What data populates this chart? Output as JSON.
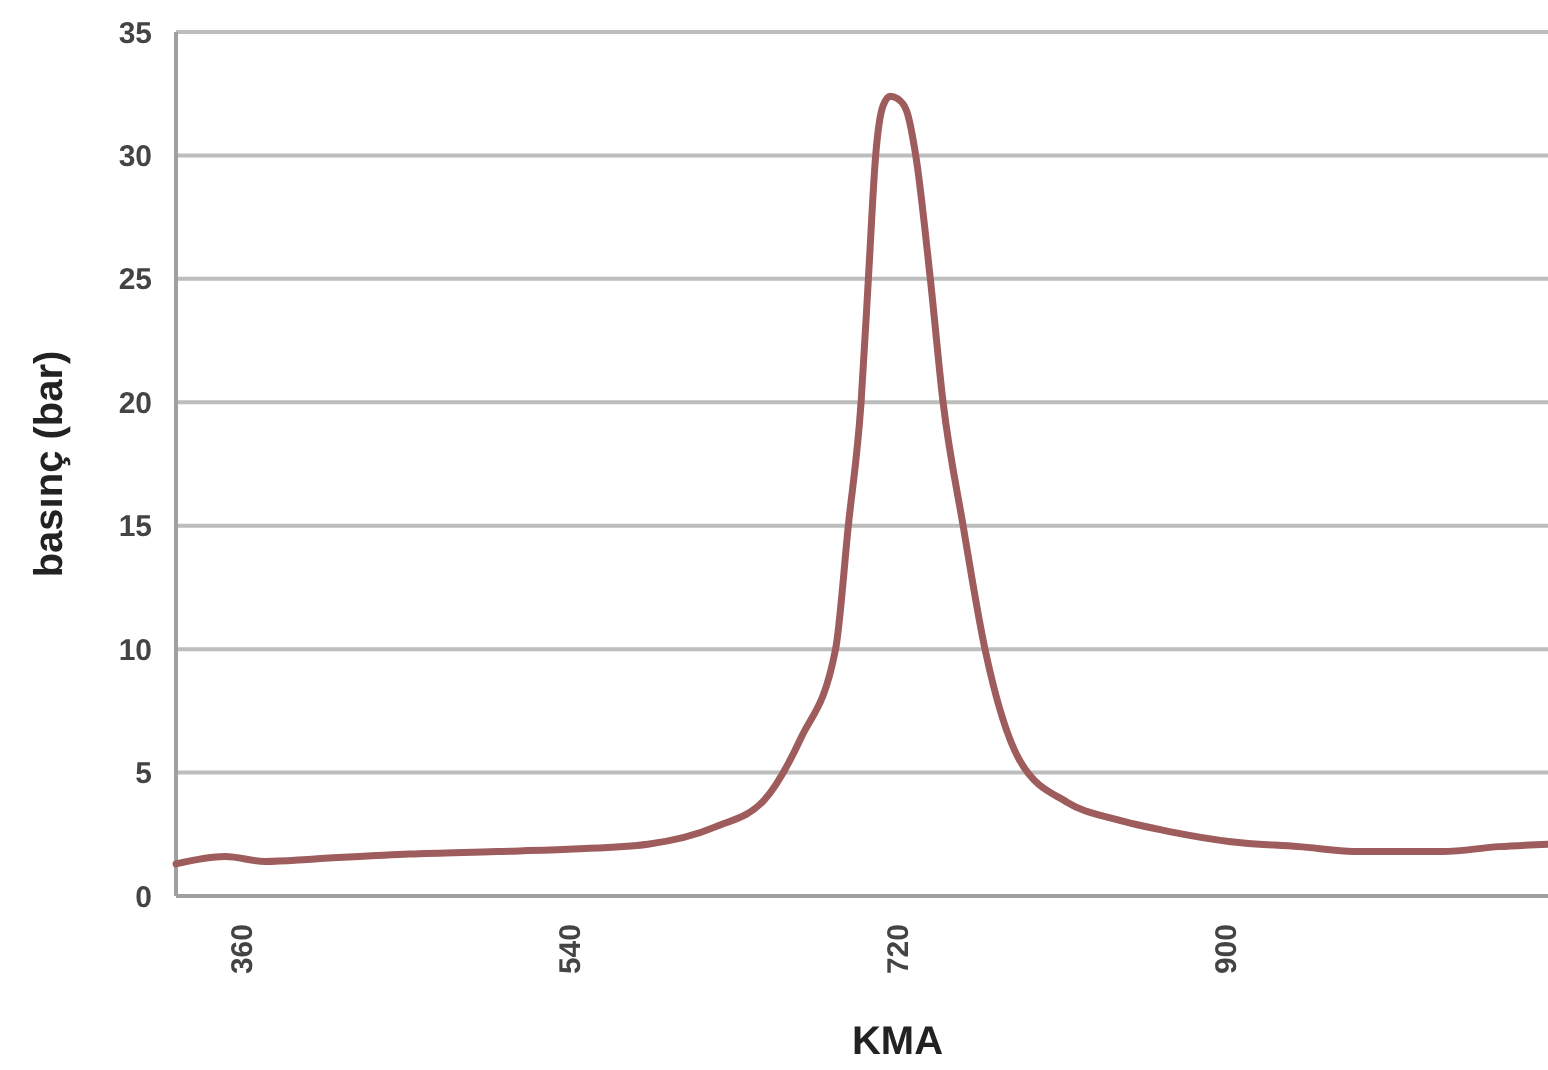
{
  "chart_data": {
    "type": "line",
    "xlabel": "KMA",
    "ylabel": "basınç (bar)",
    "xlim": [
      324,
      1077
    ],
    "ylim": [
      0,
      35
    ],
    "xticks": [
      360,
      540,
      720,
      900
    ],
    "yticks": [
      0,
      5,
      10,
      15,
      20,
      25,
      30,
      35
    ],
    "grid": "y",
    "series": [
      {
        "color": "#9e5c5c",
        "x": [
          324,
          351,
          373,
          400,
          452,
          500,
          542,
          583,
          620,
          647,
          667,
          686,
          693,
          700,
          704,
          708,
          712,
          716,
          720,
          725,
          730,
          738,
          745,
          756,
          768,
          787,
          813,
          840,
          870,
          903,
          940,
          974,
          1019,
          1050,
          1077
        ],
        "values": [
          1.3,
          1.6,
          1.4,
          1.5,
          1.7,
          1.8,
          1.9,
          2.1,
          2.8,
          3.9,
          6.4,
          10,
          15,
          20,
          25,
          30,
          32,
          32.4,
          32.3,
          31.8,
          30,
          25,
          20,
          15,
          10,
          5.5,
          3.8,
          3.1,
          2.6,
          2.2,
          2.0,
          1.8,
          1.8,
          2.0,
          2.1
        ]
      }
    ]
  }
}
